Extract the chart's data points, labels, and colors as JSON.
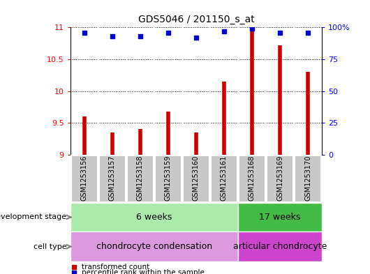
{
  "title": "GDS5046 / 201150_s_at",
  "samples": [
    "GSM1253156",
    "GSM1253157",
    "GSM1253158",
    "GSM1253159",
    "GSM1253160",
    "GSM1253161",
    "GSM1253168",
    "GSM1253169",
    "GSM1253170"
  ],
  "transformed_count": [
    9.6,
    9.35,
    9.4,
    9.68,
    9.35,
    10.15,
    11.0,
    10.72,
    10.3
  ],
  "percentile_rank": [
    96,
    93,
    93,
    96,
    92,
    97,
    99,
    96,
    96
  ],
  "ylim_left": [
    9,
    11
  ],
  "yticks_left": [
    9,
    9.5,
    10,
    10.5,
    11
  ],
  "ylim_right": [
    0,
    100
  ],
  "yticks_right": [
    0,
    25,
    50,
    75,
    100
  ],
  "bar_color": "#cc0000",
  "dot_color": "#0000cc",
  "bg_color": "#ffffff",
  "panel_bg": "#c8c8c8",
  "dev_stage_groups": [
    {
      "label": "6 weeks",
      "start": 0,
      "end": 6,
      "color": "#aaeaaa"
    },
    {
      "label": "17 weeks",
      "start": 6,
      "end": 9,
      "color": "#44bb44"
    }
  ],
  "cell_type_groups": [
    {
      "label": "chondrocyte condensation",
      "start": 0,
      "end": 6,
      "color": "#dd99dd"
    },
    {
      "label": "articular chondrocyte",
      "start": 6,
      "end": 9,
      "color": "#cc44cc"
    }
  ],
  "legend_items": [
    {
      "label": "transformed count",
      "color": "#cc0000"
    },
    {
      "label": "percentile rank within the sample",
      "color": "#0000cc"
    }
  ],
  "row_labels": [
    "development stage",
    "cell type"
  ],
  "title_fontsize": 10,
  "tick_fontsize": 8,
  "label_fontsize": 9,
  "sample_fontsize": 7
}
